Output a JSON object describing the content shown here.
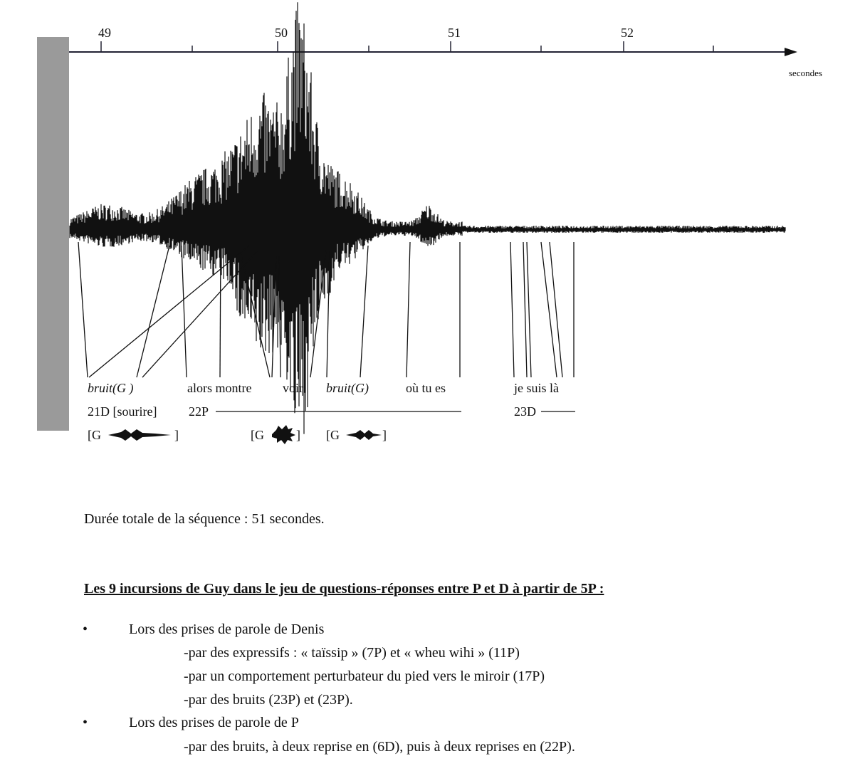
{
  "figure": {
    "axis": {
      "ticks": [
        "49",
        "50",
        "51",
        "52"
      ],
      "unit": "secondes"
    },
    "words": [
      "bruit(G )",
      "alors montre",
      "voir",
      "bruit(G)",
      "où tu es",
      "je suis là"
    ],
    "turns": [
      "21D [sourire]",
      "22P",
      "23D"
    ],
    "noises": [
      {
        "open": "[G",
        "close": "]"
      },
      {
        "open": "[G",
        "close": "]"
      },
      {
        "open": "[G",
        "close": "]"
      }
    ]
  },
  "duration": "Durée totale de la séquence : 51 secondes.",
  "section": {
    "heading": "Les 9 incursions de Guy dans le jeu de questions-réponses entre P et D à partir de 5P :",
    "items": [
      {
        "label": "Lors des prises de parole de Denis",
        "sub": [
          "-par des expressifs : « taïssip » (7P) et « wheu wihi » (11P)",
          "-par  un comportement perturbateur du pied vers le miroir (17P)",
          "-par des bruits (23P) et (23P)."
        ]
      },
      {
        "label": "Lors des prises de parole de P",
        "sub": [
          "-par des bruits, à deux reprise en (6D), puis à deux reprises en  (22P)."
        ]
      }
    ]
  }
}
